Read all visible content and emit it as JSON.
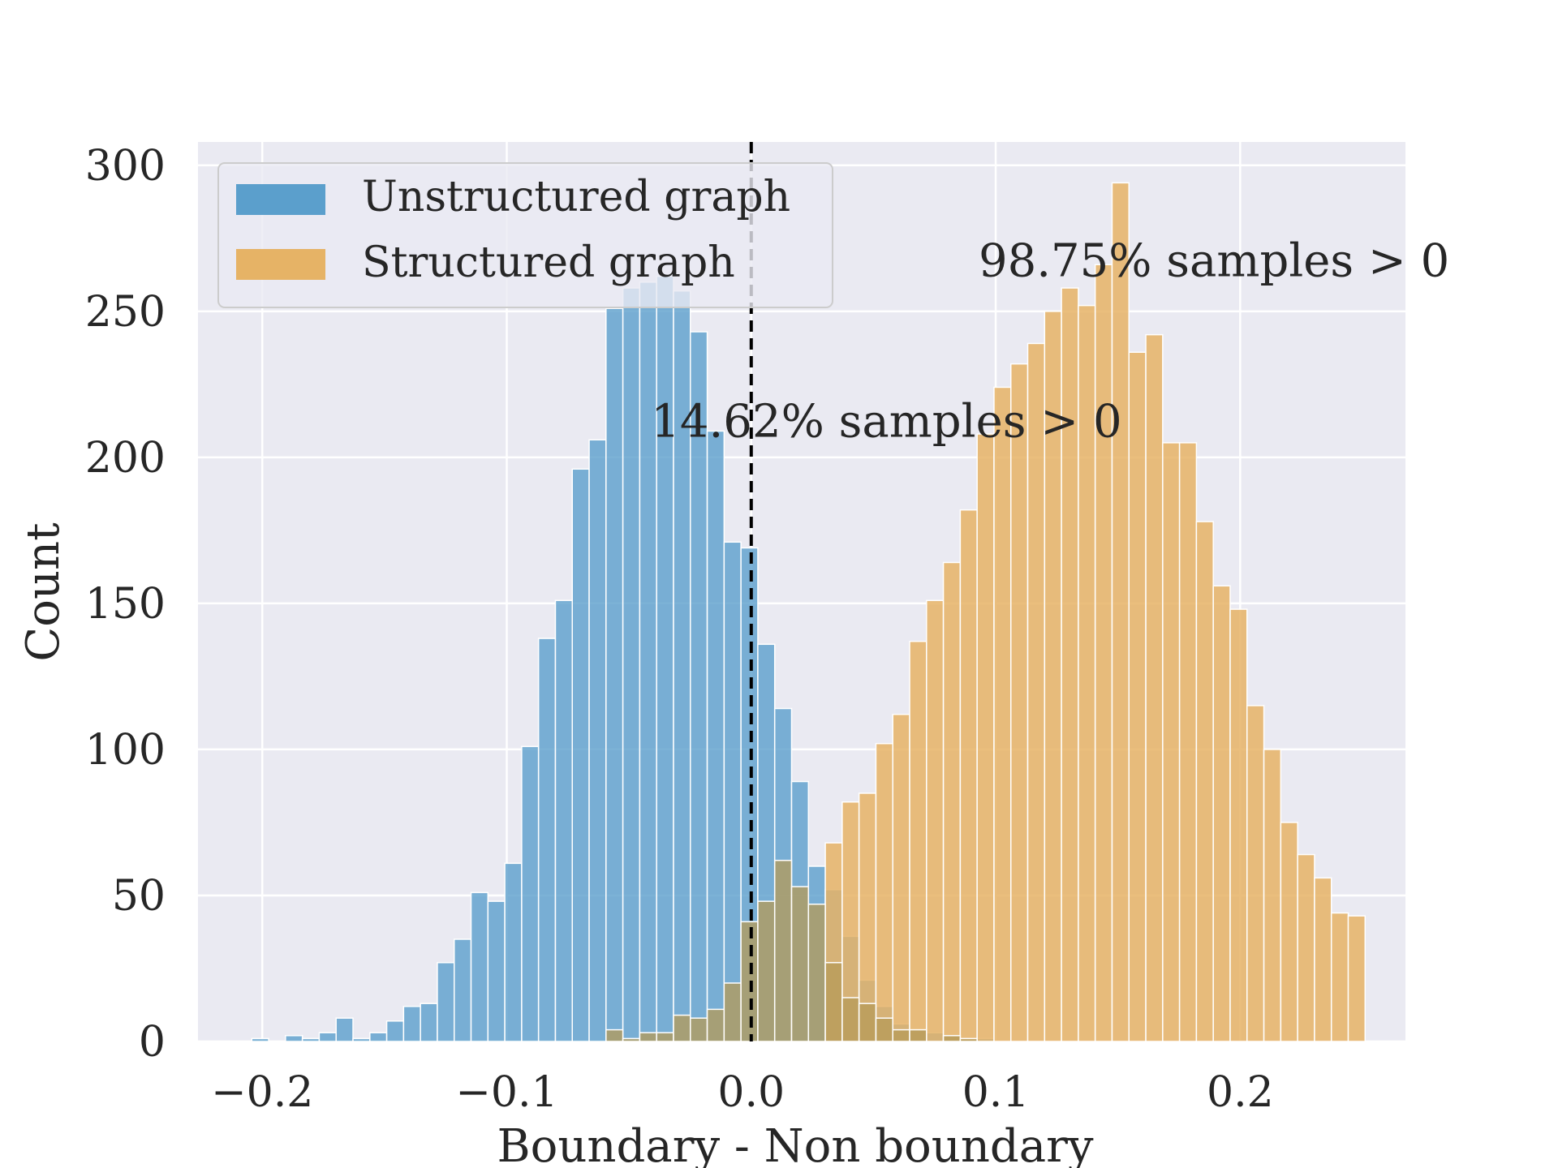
{
  "chart_data": {
    "type": "bar",
    "xlabel": "Boundary - Non boundary",
    "ylabel": "Count",
    "xlim": [
      -0.2263,
      0.2676
    ],
    "ylim": [
      0,
      308
    ],
    "x_ticks": [
      -0.2,
      -0.1,
      0.0,
      0.1,
      0.2
    ],
    "x_tick_labels": [
      "−0.2",
      "−0.1",
      "0.0",
      "0.1",
      "0.2"
    ],
    "y_ticks": [
      0,
      50,
      100,
      150,
      200,
      250,
      300
    ],
    "y_tick_labels": [
      "0",
      "50",
      "100",
      "150",
      "200",
      "250",
      "300"
    ],
    "grid": true,
    "legend_position": "top-left",
    "bin_width": 0.0069,
    "reference_line": {
      "x": 0.0,
      "style": "dashed",
      "color": "#000000"
    },
    "series": [
      {
        "name": "Unstructured graph",
        "color": "#5b9fcc",
        "bin_starts": [
          -0.2043,
          -0.1974,
          -0.1905,
          -0.1836,
          -0.1767,
          -0.1698,
          -0.1629,
          -0.156,
          -0.1491,
          -0.1422,
          -0.1353,
          -0.1284,
          -0.1215,
          -0.1146,
          -0.1077,
          -0.1008,
          -0.0939,
          -0.087,
          -0.0801,
          -0.0732,
          -0.0663,
          -0.0594,
          -0.0525,
          -0.0456,
          -0.0387,
          -0.0318,
          -0.0249,
          -0.018,
          -0.0111,
          -0.0042,
          0.0027,
          0.0096,
          0.0165,
          0.0234,
          0.0303,
          0.0372,
          0.0441,
          0.051,
          0.0579,
          0.0648,
          0.0717,
          0.0786,
          0.0855,
          0.0924
        ],
        "counts": [
          1,
          0,
          2,
          1,
          3,
          8,
          1,
          3,
          7,
          12,
          13,
          27,
          35,
          51,
          48,
          61,
          101,
          138,
          151,
          196,
          206,
          251,
          258,
          260,
          262,
          257,
          243,
          209,
          171,
          169,
          136,
          114,
          89,
          60,
          52,
          36,
          21,
          12,
          6,
          4,
          3,
          2,
          1,
          1
        ]
      },
      {
        "name": "Structured graph",
        "color": "#e6b366",
        "bin_starts": [
          -0.0594,
          -0.0525,
          -0.0456,
          -0.0387,
          -0.0318,
          -0.0249,
          -0.018,
          -0.0111,
          -0.0042,
          0.0027,
          0.0096,
          0.0165,
          0.0234,
          0.0303,
          0.0372,
          0.0441,
          0.051,
          0.0579,
          0.0648,
          0.0717,
          0.0786,
          0.0855,
          0.0924,
          0.0993,
          0.1062,
          0.1131,
          0.12,
          0.1269,
          0.1338,
          0.1407,
          0.1476,
          0.1545,
          0.1614,
          0.1683,
          0.1752,
          0.1821,
          0.189,
          0.1959,
          0.2028,
          0.2097,
          0.2166,
          0.2235,
          0.2304,
          0.2373,
          0.2442
        ],
        "counts": [
          4,
          1,
          3,
          3,
          9,
          8,
          11,
          20,
          41,
          48,
          62,
          53,
          47,
          27,
          15,
          13,
          8,
          4,
          4,
          0,
          2,
          1,
          0,
          0,
          0,
          0,
          0,
          0,
          0,
          0,
          0,
          0,
          0,
          0,
          0,
          0,
          0,
          0,
          0,
          0,
          0,
          0,
          0,
          0,
          0
        ],
        "overlay_counts": [
          0,
          0,
          0,
          0,
          0,
          0,
          0,
          0,
          0,
          0,
          0,
          0,
          0,
          0,
          0,
          0,
          0,
          0,
          0,
          0,
          0,
          0,
          0,
          0,
          0,
          0,
          0,
          0,
          0,
          0,
          0,
          0,
          0,
          0,
          0,
          0,
          0,
          0,
          0,
          0,
          0,
          0,
          0,
          0,
          0
        ]
      }
    ],
    "structured_full": {
      "bin_starts": [
        -0.0456,
        -0.0387,
        -0.0318,
        -0.0249,
        -0.018,
        -0.0111,
        -0.0042,
        0.0027,
        0.0096,
        0.0165,
        0.0234,
        0.0303,
        0.0372,
        0.0441,
        0.051,
        0.0579,
        0.0648,
        0.0717,
        0.0786,
        0.0855,
        0.0924,
        0.0993,
        0.1062,
        0.1131,
        0.12,
        0.1269,
        0.1338,
        0.1407,
        0.1476,
        0.1545,
        0.1614,
        0.1683,
        0.1752,
        0.1821,
        0.189,
        0.1959,
        0.2028,
        0.2097,
        0.2166,
        0.2235,
        0.2304,
        0.2373,
        0.2442
      ],
      "counts": [
        0,
        0,
        0,
        0,
        0,
        0,
        0,
        0,
        0,
        0,
        0,
        68,
        82,
        85,
        102,
        112,
        137,
        151,
        164,
        182,
        208,
        224,
        232,
        239,
        250,
        258,
        252,
        266,
        294,
        236,
        242,
        205,
        205,
        178,
        156,
        148,
        115,
        100,
        75,
        64,
        56,
        44,
        43
      ]
    },
    "annotations": [
      {
        "text": "98.75% samples > 0",
        "x": 0.093,
        "y": 262
      },
      {
        "text": "14.62% samples > 0",
        "x": -0.041,
        "y": 207
      }
    ]
  }
}
